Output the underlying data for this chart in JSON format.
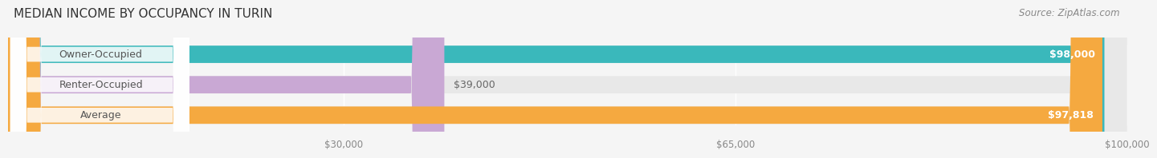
{
  "title": "MEDIAN INCOME BY OCCUPANCY IN TURIN",
  "source": "Source: ZipAtlas.com",
  "categories": [
    "Owner-Occupied",
    "Renter-Occupied",
    "Average"
  ],
  "values": [
    98000,
    39000,
    97818
  ],
  "bar_colors": [
    "#3ab8bb",
    "#c9a8d4",
    "#f5a940"
  ],
  "label_colors": [
    "#ffffff",
    "#888888",
    "#ffffff"
  ],
  "value_labels": [
    "$98,000",
    "$39,000",
    "$97,818"
  ],
  "xmin": 0,
  "xmax": 100000,
  "xtick_values": [
    30000,
    65000,
    100000
  ],
  "xtick_labels": [
    "$30,000",
    "$65,000",
    "$100,000"
  ],
  "bg_color": "#f5f5f5",
  "bar_bg_color": "#e8e8e8",
  "title_fontsize": 11,
  "source_fontsize": 8.5,
  "label_fontsize": 9,
  "value_fontsize": 9,
  "tick_fontsize": 8.5
}
